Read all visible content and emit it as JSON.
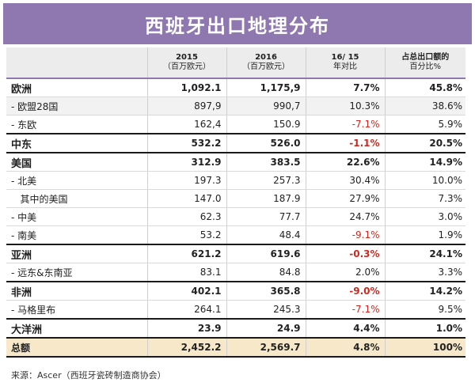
{
  "title": "西班牙出口地理分布",
  "columns": {
    "region": "",
    "y2015": "2015",
    "y2015_unit": "（百万欧元）",
    "y2016": "2016",
    "y2016_unit": "（百万欧元）",
    "change": "16/ 15",
    "change_unit": "年对比",
    "share": "占总出口额的",
    "share_unit": "百分比%"
  },
  "rows": [
    {
      "label": "欧洲",
      "v2015": "1,092.1",
      "v2016": "1,175,9",
      "change": "7.7%",
      "share": "45.8%",
      "kind": "major",
      "negative": false
    },
    {
      "label": "- 欧盟28国",
      "v2015": "897,9",
      "v2016": "990,7",
      "change": "10.3%",
      "share": "38.6%",
      "kind": "minor",
      "negative": false
    },
    {
      "label": "- 东欧",
      "v2015": "162,4",
      "v2016": "150.9",
      "change": "-7.1%",
      "share": "5.9%",
      "kind": "minor",
      "negative": true
    },
    {
      "label": "中东",
      "v2015": "532.2",
      "v2016": "526.0",
      "change": "-1.1%",
      "share": "20.5%",
      "kind": "major",
      "negative": true
    },
    {
      "label": "美国",
      "v2015": "312.9",
      "v2016": "383.5",
      "change": "22.6%",
      "share": "14.9%",
      "kind": "major",
      "negative": false
    },
    {
      "label": "- 北美",
      "v2015": "197.3",
      "v2016": "257.3",
      "change": "30.4%",
      "share": "10.0%",
      "kind": "minor",
      "negative": false
    },
    {
      "label": "   其中的美国",
      "v2015": "147.0",
      "v2016": "187.9",
      "change": "27.9%",
      "share": "7.3%",
      "kind": "minor",
      "negative": false
    },
    {
      "label": "- 中美",
      "v2015": "62.3",
      "v2016": "77.7",
      "change": "24.7%",
      "share": "3.0%",
      "kind": "minor",
      "negative": false
    },
    {
      "label": "- 南美",
      "v2015": "53.2",
      "v2016": "48.4",
      "change": "-9.1%",
      "share": "1.9%",
      "kind": "minor",
      "negative": true
    },
    {
      "label": "亚洲",
      "v2015": "621.2",
      "v2016": "619.6",
      "change": "-0.3%",
      "share": "24.1%",
      "kind": "major",
      "negative": true
    },
    {
      "label": "- 远东&东南亚",
      "v2015": "83.1",
      "v2016": "84.8",
      "change": "2.0%",
      "share": "3.3%",
      "kind": "minor",
      "negative": false
    },
    {
      "label": "非洲",
      "v2015": "402.1",
      "v2016": "365.8",
      "change": "-9.0%",
      "share": "14.2%",
      "kind": "major",
      "negative": true
    },
    {
      "label": "- 马格里布",
      "v2015": "264.1",
      "v2016": "245.3",
      "change": "-7.1%",
      "share": "9.5%",
      "kind": "minor",
      "negative": true
    },
    {
      "label": "大洋洲",
      "v2015": "23.9",
      "v2016": "24.9",
      "change": "4.4%",
      "share": "1.0%",
      "kind": "major",
      "negative": false
    },
    {
      "label": "总额",
      "v2015": "2,452.2",
      "v2016": "2,569.7",
      "change": "4.8%",
      "share": "100%",
      "kind": "total",
      "negative": false
    }
  ],
  "source": "来源：Ascer（西班牙瓷砖制造商协会）",
  "colors": {
    "header": "#8f77b0",
    "negative": "#d0281e",
    "total_bg": "#f6e8c8"
  }
}
